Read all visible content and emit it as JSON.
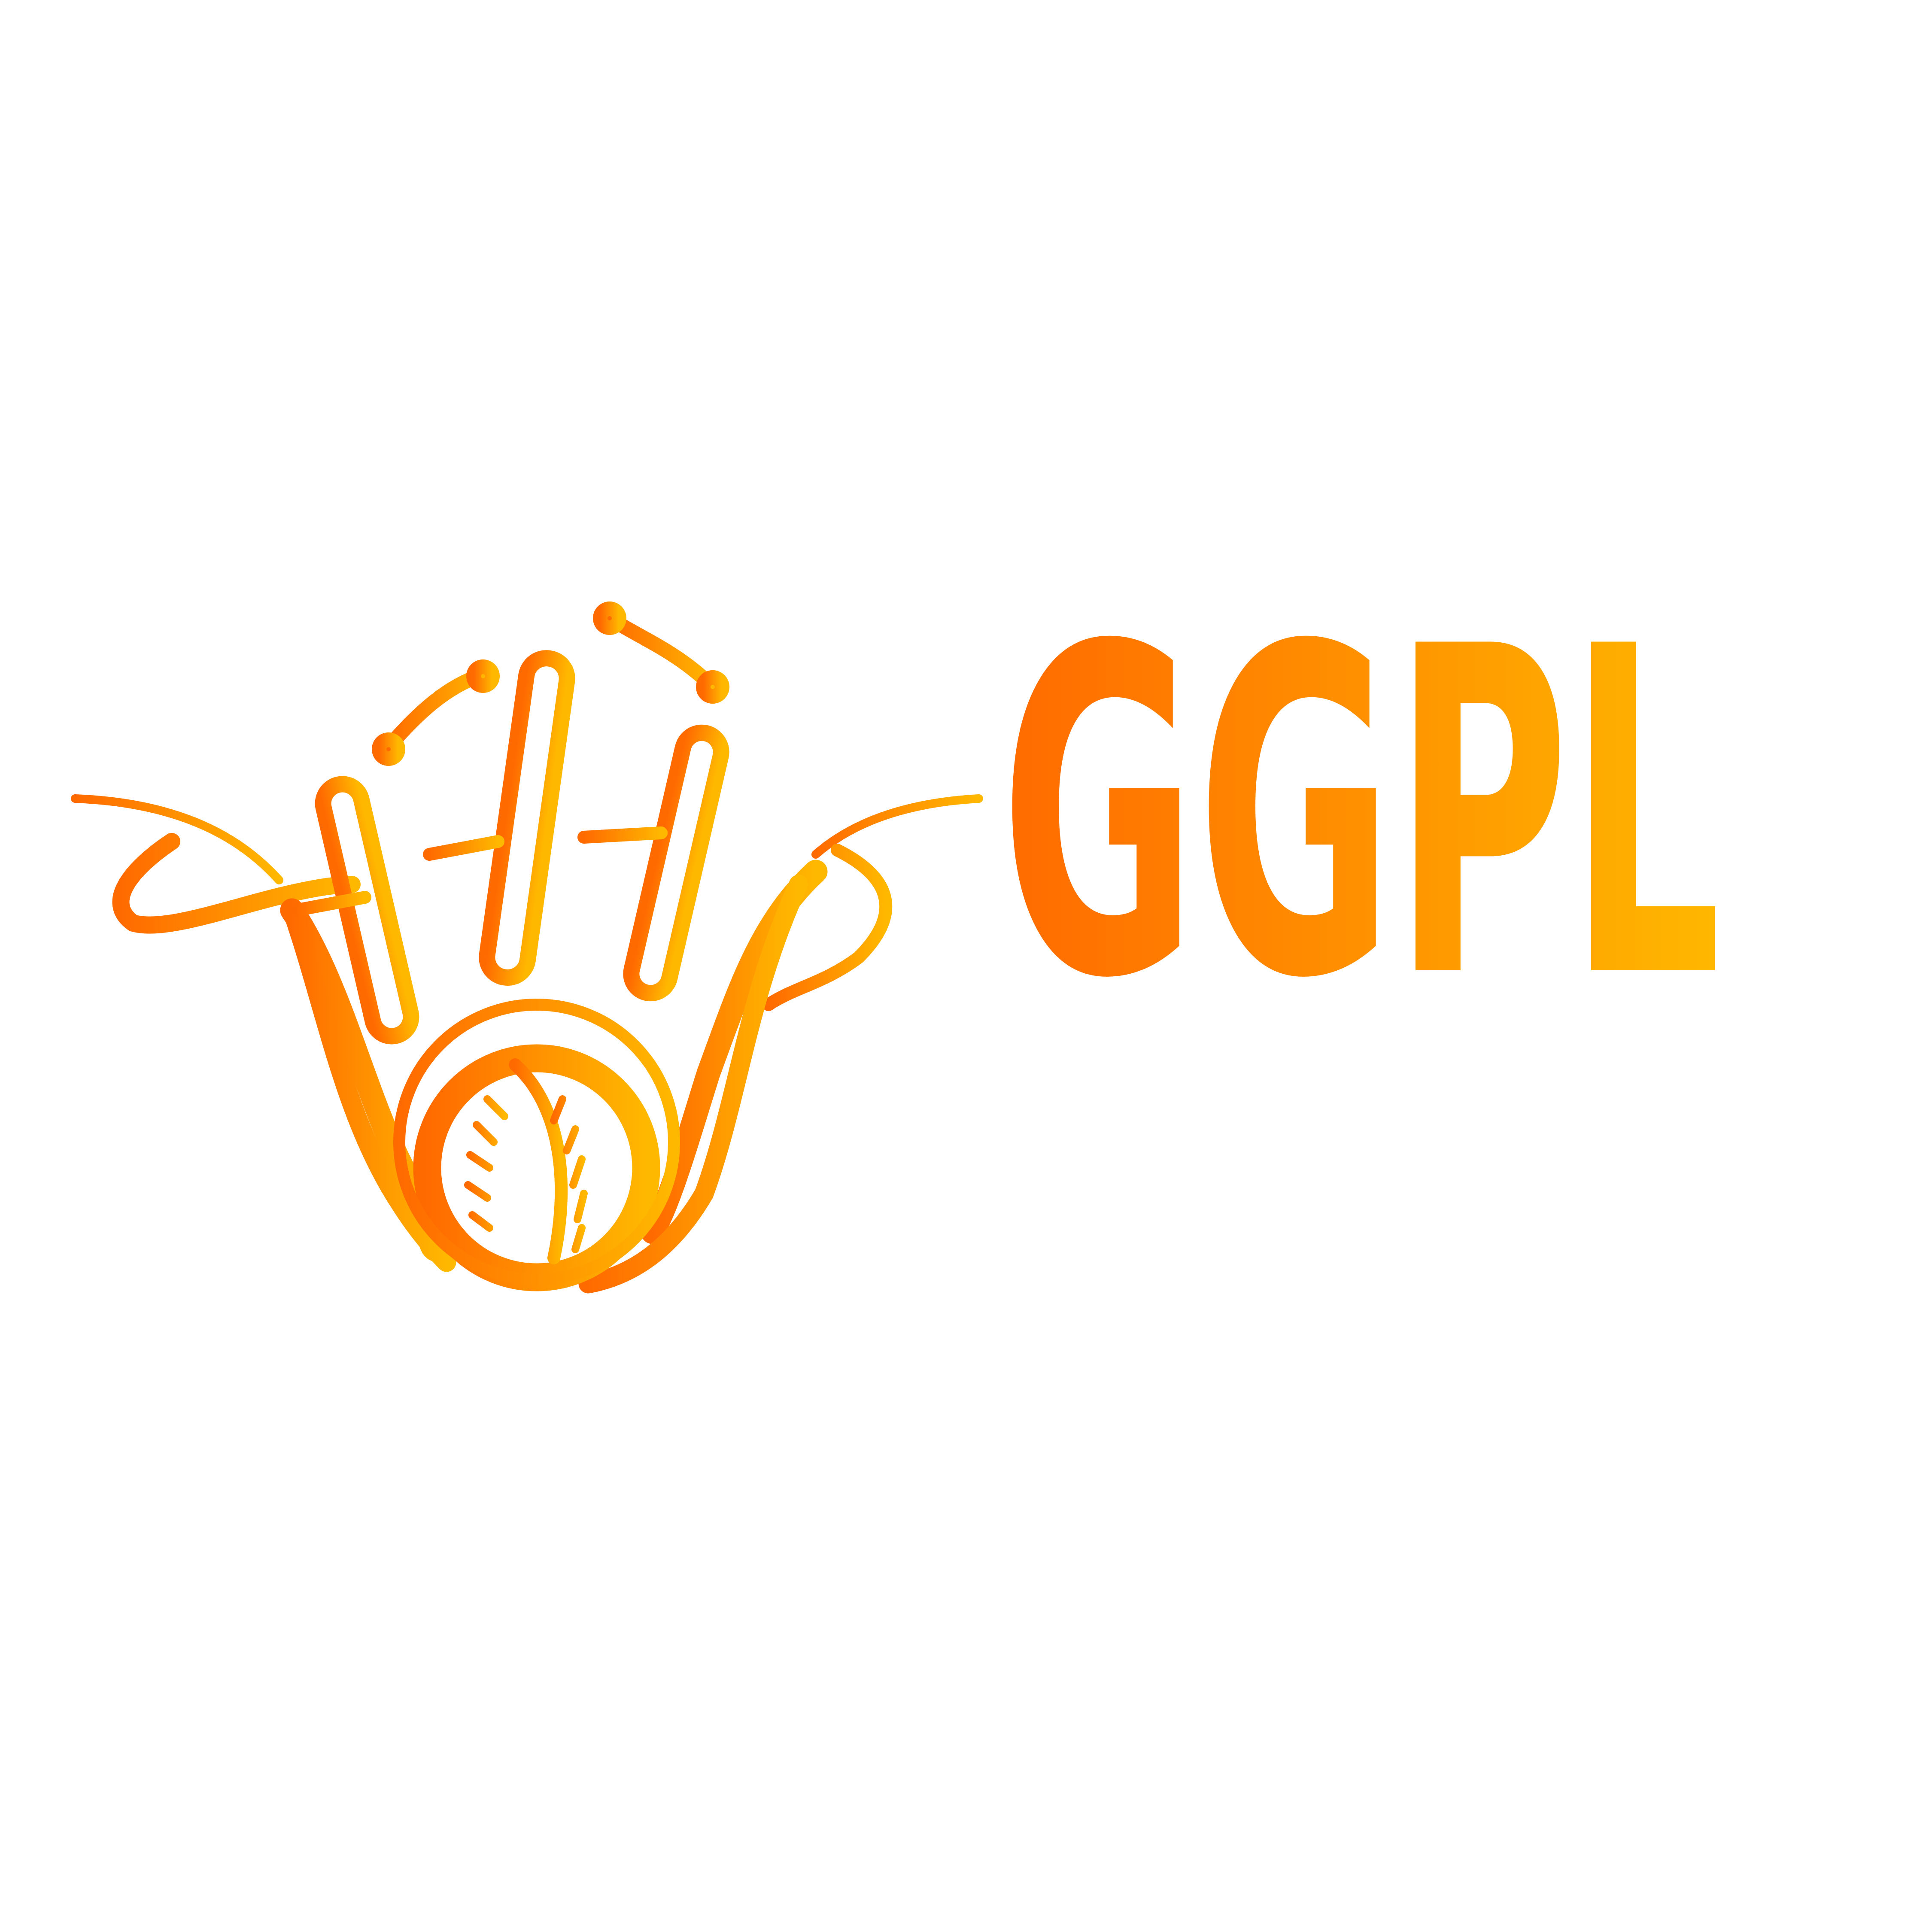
{
  "brand": {
    "wordmark": "GGPL",
    "gradient_start": "#FF6A00",
    "gradient_end": "#FFB800",
    "background": "#FFFFFF"
  },
  "emblem": {
    "icon": "cricket-hand-stumps-ball-icon",
    "parts": [
      "hand",
      "stumps",
      "bails",
      "cricket-ball"
    ]
  }
}
